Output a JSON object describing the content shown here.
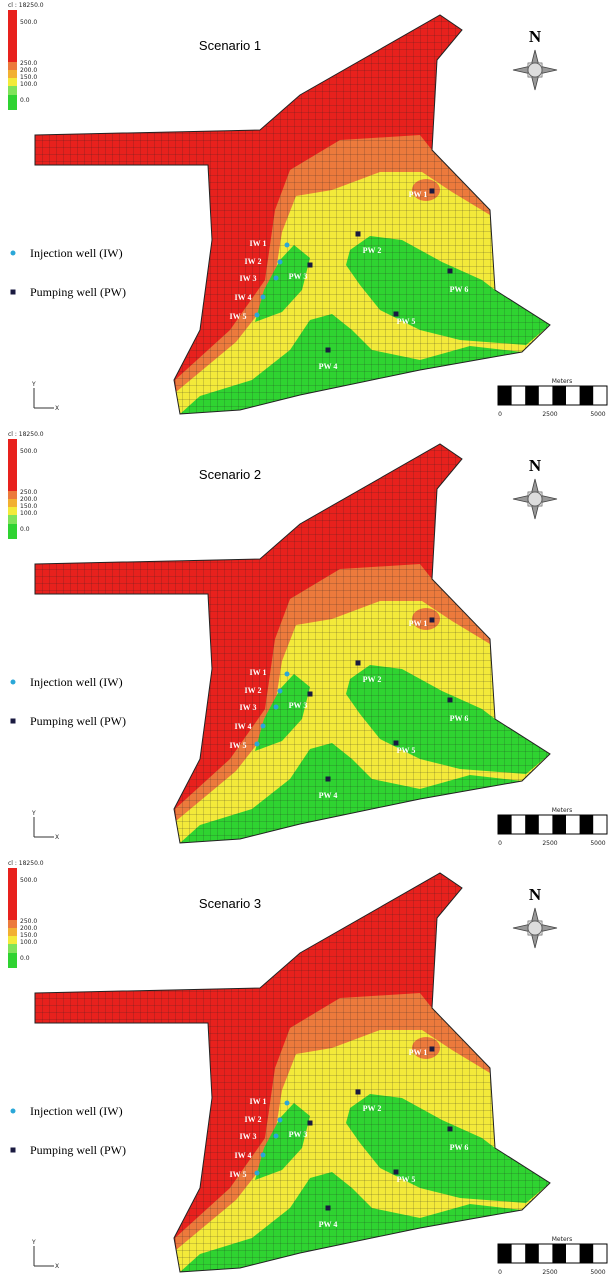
{
  "panels": [
    {
      "title": "Scenario 1",
      "legend": {
        "header": "cl : 18250.0",
        "labels": [
          "500.0",
          "250.0",
          "200.0",
          "150.0",
          "100.0",
          "0.0"
        ]
      },
      "north": "N",
      "well_legend": [
        "Injection well (IW)",
        "Pumping well (PW)"
      ],
      "injection_wells": [
        "IW 1",
        "IW 2",
        "IW 3",
        "IW 4",
        "IW 5"
      ],
      "pumping_wells": [
        "PW 1",
        "PW 2",
        "PW 3",
        "PW 4",
        "PW 5",
        "PW 6"
      ],
      "scale": {
        "unit": "Meters",
        "labels": [
          "0",
          "2500",
          "5000"
        ]
      },
      "axes": [
        "Y",
        "X"
      ]
    },
    {
      "title": "Scenario 2",
      "legend": {
        "header": "cl : 18250.0",
        "labels": [
          "500.0",
          "250.0",
          "200.0",
          "150.0",
          "100.0",
          "0.0"
        ]
      },
      "north": "N",
      "well_legend": [
        "Injection well (IW)",
        "Pumping well (PW)"
      ],
      "injection_wells": [
        "IW 1",
        "IW 2",
        "IW 3",
        "IW 4",
        "IW 5"
      ],
      "pumping_wells": [
        "PW 1",
        "PW 2",
        "PW 3",
        "PW 4",
        "PW 5",
        "PW 6"
      ],
      "scale": {
        "unit": "Meters",
        "labels": [
          "0",
          "2500",
          "5000"
        ]
      },
      "axes": [
        "Y",
        "X"
      ]
    },
    {
      "title": "Scenario 3",
      "legend": {
        "header": "cl : 18250.0",
        "labels": [
          "500.0",
          "250.0",
          "200.0",
          "150.0",
          "100.0",
          "0.0"
        ]
      },
      "north": "N",
      "well_legend": [
        "Injection well (IW)",
        "Pumping well (PW)"
      ],
      "injection_wells": [
        "IW 1",
        "IW 2",
        "IW 3",
        "IW 4",
        "IW 5"
      ],
      "pumping_wells": [
        "PW 1",
        "PW 2",
        "PW 3",
        "PW 4",
        "PW 5",
        "PW 6"
      ],
      "scale": {
        "unit": "Meters",
        "labels": [
          "0",
          "2500",
          "5000"
        ]
      },
      "axes": [
        "Y",
        "X"
      ]
    }
  ]
}
